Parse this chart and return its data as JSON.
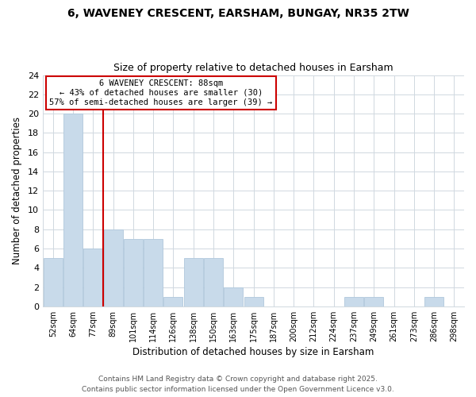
{
  "title": "6, WAVENEY CRESCENT, EARSHAM, BUNGAY, NR35 2TW",
  "subtitle": "Size of property relative to detached houses in Earsham",
  "xlabel": "Distribution of detached houses by size in Earsham",
  "ylabel": "Number of detached properties",
  "bar_color": "#c8daea",
  "bar_edge_color": "#b0c8dc",
  "bins": [
    "52sqm",
    "64sqm",
    "77sqm",
    "89sqm",
    "101sqm",
    "114sqm",
    "126sqm",
    "138sqm",
    "150sqm",
    "163sqm",
    "175sqm",
    "187sqm",
    "200sqm",
    "212sqm",
    "224sqm",
    "237sqm",
    "249sqm",
    "261sqm",
    "273sqm",
    "286sqm",
    "298sqm"
  ],
  "values": [
    5,
    20,
    6,
    8,
    7,
    7,
    1,
    5,
    5,
    2,
    1,
    0,
    0,
    0,
    0,
    1,
    1,
    0,
    0,
    1,
    0
  ],
  "vline_color": "#cc0000",
  "ylim": [
    0,
    24
  ],
  "yticks": [
    0,
    2,
    4,
    6,
    8,
    10,
    12,
    14,
    16,
    18,
    20,
    22,
    24
  ],
  "annotation_title": "6 WAVENEY CRESCENT: 88sqm",
  "annotation_line1": "← 43% of detached houses are smaller (30)",
  "annotation_line2": "57% of semi-detached houses are larger (39) →",
  "annotation_box_color": "#ffffff",
  "annotation_box_edge": "#cc0000",
  "bg_color": "#ffffff",
  "grid_color": "#d0d8e0",
  "footer1": "Contains HM Land Registry data © Crown copyright and database right 2025.",
  "footer2": "Contains public sector information licensed under the Open Government Licence v3.0."
}
